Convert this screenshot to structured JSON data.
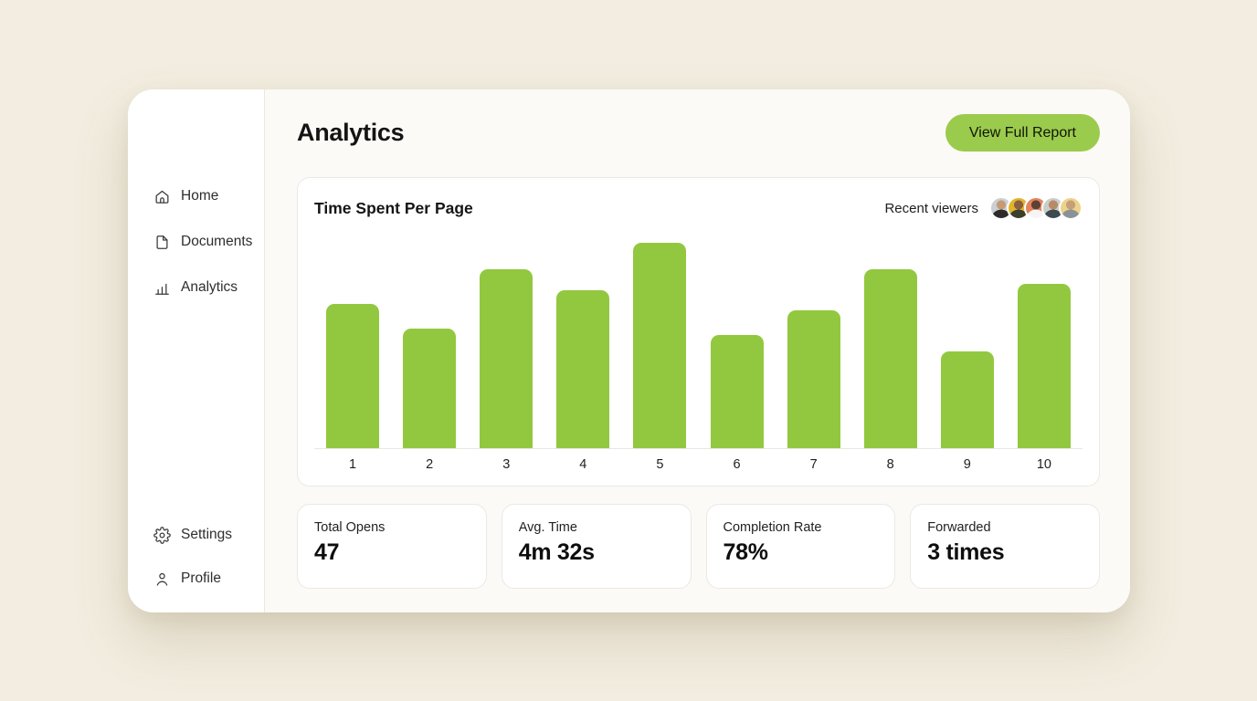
{
  "colors": {
    "page_bg": "#F2EDE0",
    "window_bg": "#FFFFFF",
    "main_bg": "#FBFAF7",
    "accent_button_green": "#9BCB4C",
    "bar_green": "#92C83F",
    "card_border": "#EBE9E4"
  },
  "sidebar": {
    "items_top": [
      {
        "label": "Home",
        "icon": "home-icon"
      },
      {
        "label": "Documents",
        "icon": "document-icon"
      },
      {
        "label": "Analytics",
        "icon": "bar-chart-icon"
      }
    ],
    "items_bottom": [
      {
        "label": "Settings",
        "icon": "gear-icon"
      },
      {
        "label": "Profile",
        "icon": "person-icon"
      }
    ]
  },
  "header": {
    "title": "Analytics",
    "view_report_label": "View Full Report"
  },
  "chart_card": {
    "title": "Time Spent Per Page",
    "viewers_label": "Recent viewers",
    "avatars": [
      {
        "name": "viewer-1",
        "bg": "#C9CFD4",
        "skin": "#C79A72",
        "shirt": "#2E2C2A"
      },
      {
        "name": "viewer-2",
        "bg": "#E0B52E",
        "skin": "#8D5F3F",
        "shirt": "#3A3F2E"
      },
      {
        "name": "viewer-3",
        "bg": "#E2845F",
        "skin": "#5E4034",
        "shirt": "#F5F5F5"
      },
      {
        "name": "viewer-4",
        "bg": "#C9CEC9",
        "skin": "#B98A66",
        "shirt": "#3C4A52"
      },
      {
        "name": "viewer-5",
        "bg": "#EED28A",
        "skin": "#C59F7A",
        "shirt": "#8A9199"
      }
    ]
  },
  "chart_data": {
    "type": "bar",
    "title": "Time Spent Per Page",
    "categories": [
      "1",
      "2",
      "3",
      "4",
      "5",
      "6",
      "7",
      "8",
      "9",
      "10"
    ],
    "values": [
      70,
      58,
      87,
      77,
      100,
      55,
      67,
      87,
      47,
      80
    ],
    "xlabel": "",
    "ylabel": "",
    "ylim": [
      0,
      100
    ],
    "grid": false,
    "legend": "none",
    "bar_color": "#92C83F"
  },
  "stats": [
    {
      "label": "Total Opens",
      "value": "47"
    },
    {
      "label": "Avg. Time",
      "value": "4m 32s"
    },
    {
      "label": "Completion Rate",
      "value": "78%"
    },
    {
      "label": "Forwarded",
      "value": "3 times"
    }
  ]
}
